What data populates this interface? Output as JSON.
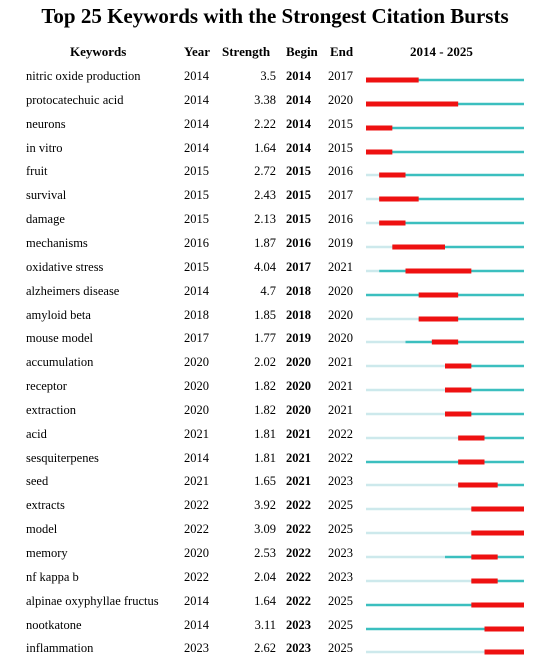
{
  "chart_data": {
    "type": "table",
    "title": "Top 25 Keywords with the Strongest Citation Bursts",
    "headers": {
      "keyword": "Keywords",
      "year": "Year",
      "strength": "Strength",
      "begin": "Begin",
      "end": "End",
      "range": "2014 - 2025"
    },
    "range_start": 2014,
    "range_end": 2025,
    "rows": [
      {
        "keyword": "nitric oxide production",
        "year": "2014",
        "strength": "3.5",
        "begin": "2014",
        "end": "2017"
      },
      {
        "keyword": "protocatechuic acid",
        "year": "2014",
        "strength": "3.38",
        "begin": "2014",
        "end": "2020"
      },
      {
        "keyword": "neurons",
        "year": "2014",
        "strength": "2.22",
        "begin": "2014",
        "end": "2015"
      },
      {
        "keyword": "in vitro",
        "year": "2014",
        "strength": "1.64",
        "begin": "2014",
        "end": "2015"
      },
      {
        "keyword": "fruit",
        "year": "2015",
        "strength": "2.72",
        "begin": "2015",
        "end": "2016"
      },
      {
        "keyword": "survival",
        "year": "2015",
        "strength": "2.43",
        "begin": "2015",
        "end": "2017"
      },
      {
        "keyword": "damage",
        "year": "2015",
        "strength": "2.13",
        "begin": "2015",
        "end": "2016"
      },
      {
        "keyword": "mechanisms",
        "year": "2016",
        "strength": "1.87",
        "begin": "2016",
        "end": "2019"
      },
      {
        "keyword": "oxidative stress",
        "year": "2015",
        "strength": "4.04",
        "begin": "2017",
        "end": "2021"
      },
      {
        "keyword": "alzheimers disease",
        "year": "2014",
        "strength": "4.7",
        "begin": "2018",
        "end": "2020"
      },
      {
        "keyword": "amyloid beta",
        "year": "2018",
        "strength": "1.85",
        "begin": "2018",
        "end": "2020"
      },
      {
        "keyword": "mouse model",
        "year": "2017",
        "strength": "1.77",
        "begin": "2019",
        "end": "2020"
      },
      {
        "keyword": "accumulation",
        "year": "2020",
        "strength": "2.02",
        "begin": "2020",
        "end": "2021"
      },
      {
        "keyword": "receptor",
        "year": "2020",
        "strength": "1.82",
        "begin": "2020",
        "end": "2021"
      },
      {
        "keyword": "extraction",
        "year": "2020",
        "strength": "1.82",
        "begin": "2020",
        "end": "2021"
      },
      {
        "keyword": "acid",
        "year": "2021",
        "strength": "1.81",
        "begin": "2021",
        "end": "2022"
      },
      {
        "keyword": "sesquiterpenes",
        "year": "2014",
        "strength": "1.81",
        "begin": "2021",
        "end": "2022"
      },
      {
        "keyword": "seed",
        "year": "2021",
        "strength": "1.65",
        "begin": "2021",
        "end": "2023"
      },
      {
        "keyword": "extracts",
        "year": "2022",
        "strength": "3.92",
        "begin": "2022",
        "end": "2025"
      },
      {
        "keyword": "model",
        "year": "2022",
        "strength": "3.09",
        "begin": "2022",
        "end": "2025"
      },
      {
        "keyword": "memory",
        "year": "2020",
        "strength": "2.53",
        "begin": "2022",
        "end": "2023"
      },
      {
        "keyword": "nf kappa b",
        "year": "2022",
        "strength": "2.04",
        "begin": "2022",
        "end": "2023"
      },
      {
        "keyword": "alpinae oxyphyllae fructus",
        "year": "2014",
        "strength": "1.64",
        "begin": "2022",
        "end": "2025"
      },
      {
        "keyword": "nootkatone",
        "year": "2014",
        "strength": "3.11",
        "begin": "2023",
        "end": "2025"
      },
      {
        "keyword": "inflammation",
        "year": "2023",
        "strength": "2.62",
        "begin": "2023",
        "end": "2025"
      }
    ]
  },
  "colors": {
    "burst": "#ee1111",
    "active": "#3bbfbf",
    "inactive": "#cde9ec"
  }
}
